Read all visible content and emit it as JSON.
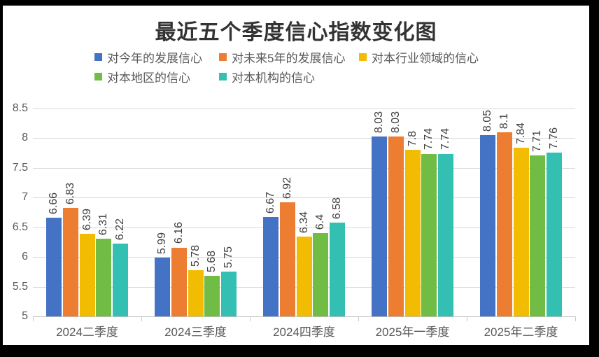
{
  "frame": {
    "border_color": "#000000",
    "canvas_color": "#ffffff"
  },
  "chart_data": {
    "type": "bar",
    "title": "最近五个季度信心指数变化图",
    "categories": [
      "2024二季度",
      "2024三季度",
      "2024四季度",
      "2025年一季度",
      "2025年二季度"
    ],
    "series": [
      {
        "name": "对今年的发展信心",
        "color": "#4472C4",
        "values": [
          6.66,
          5.99,
          6.67,
          8.03,
          8.05
        ]
      },
      {
        "name": "对未来5年的发展信心",
        "color": "#ED7D31",
        "values": [
          6.83,
          6.16,
          6.92,
          8.03,
          8.1
        ]
      },
      {
        "name": "对本行业领域的信心",
        "color": "#F2BC02",
        "values": [
          6.39,
          5.78,
          6.34,
          7.8,
          7.84
        ]
      },
      {
        "name": "对本地区的信心",
        "color": "#71BC45",
        "values": [
          6.31,
          5.68,
          6.4,
          7.74,
          7.71
        ]
      },
      {
        "name": "对本机构的信心",
        "color": "#34BFB3",
        "values": [
          6.22,
          5.75,
          6.58,
          7.74,
          7.76
        ]
      }
    ],
    "ylim": [
      5,
      8.5
    ],
    "ytick_step": 0.5,
    "yticks": [
      "8.5",
      "8",
      "7.5",
      "7",
      "6.5",
      "6",
      "5.5",
      "5"
    ],
    "grid": true,
    "gridline_color": "#d9d9d9",
    "axis_line_color": "#bfbfbf",
    "data_labels": "outside-end-rotated",
    "legend_position": "top",
    "legend_rows": [
      [
        0,
        1,
        2
      ],
      [
        3,
        4
      ]
    ],
    "legend_row1_x": [
      131,
      309,
      509
    ],
    "legend_row2_x": [
      131,
      309
    ],
    "text_colors": {
      "title": "#333333",
      "axis": "#595959",
      "data_label": "#404040"
    }
  }
}
